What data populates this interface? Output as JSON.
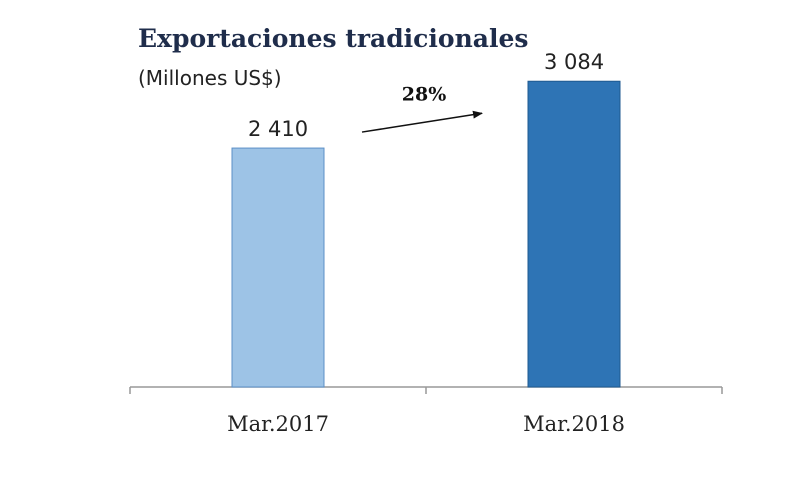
{
  "chart_data": {
    "type": "bar",
    "title": "Exportaciones tradicionales",
    "subtitle": "(Millones US$)",
    "categories": [
      "Mar.2017",
      "Mar.2018"
    ],
    "values": [
      2410,
      3084
    ],
    "value_labels": [
      "2 410",
      "3 084"
    ],
    "ylim": [
      0,
      3500
    ],
    "grid": false,
    "annotation": {
      "text": "28%",
      "from": "Mar.2017",
      "to": "Mar.2018"
    },
    "colors": [
      "#9dc3e6",
      "#2e74b5"
    ]
  }
}
